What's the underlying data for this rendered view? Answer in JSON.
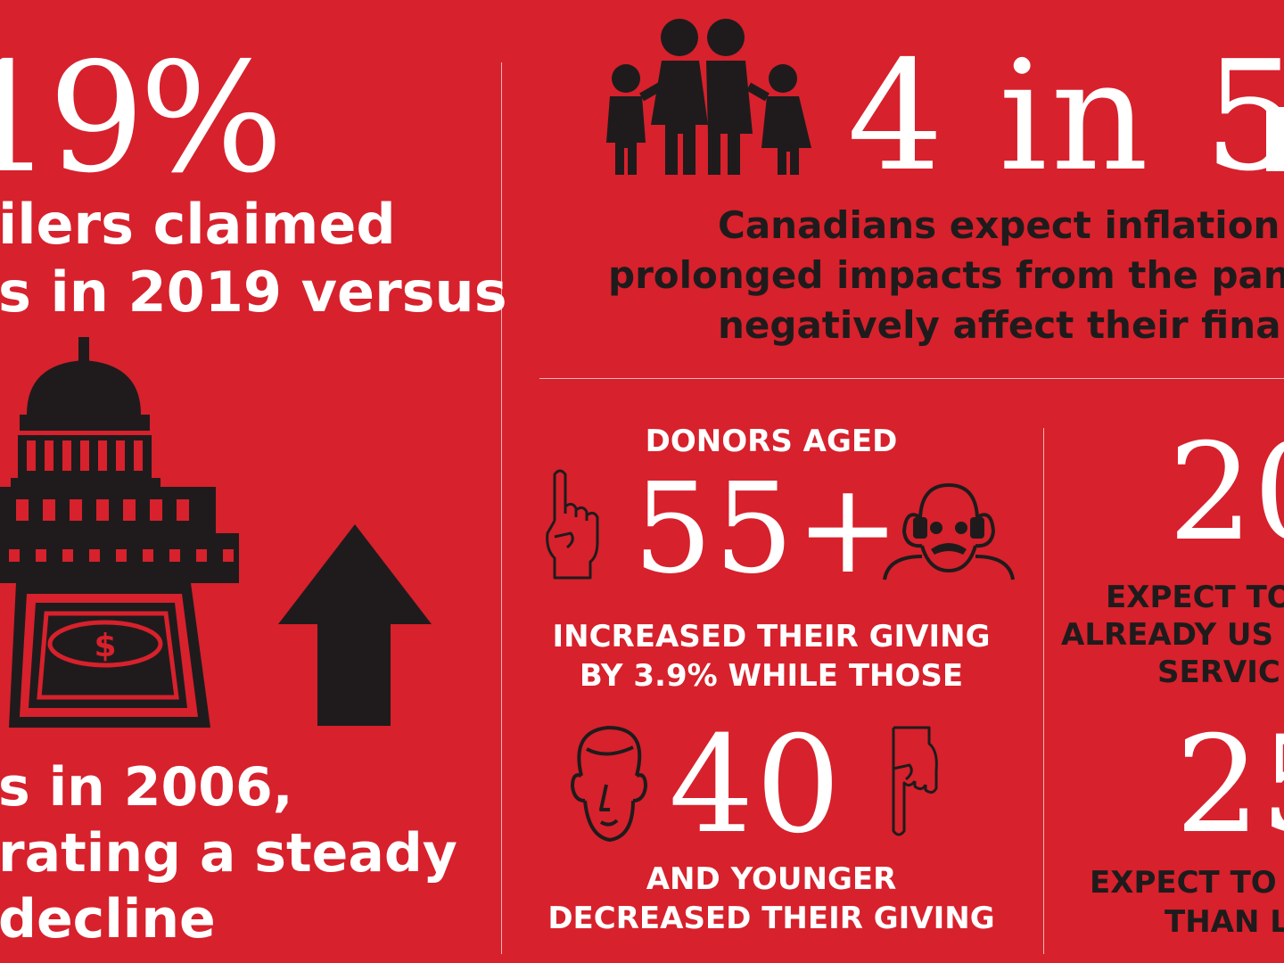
{
  "left": {
    "big_stat": "19%",
    "line1": "ilers claimed",
    "line2": "s in 2019 versus",
    "bottom_line1": "s in 2006,",
    "bottom_line2": "rating a steady",
    "bottom_line3": "decline"
  },
  "top_right": {
    "big_stat": "4 in 5",
    "text_line1": "Canadians expect inflation",
    "text_line2": "prolonged impacts from the pan",
    "text_line3": "negatively affect their finan"
  },
  "donors": {
    "heading": "DONORS AGED",
    "older_stat": "55+",
    "mid_line1": "INCREASED THEIR GIVING",
    "mid_line2": "BY 3.9% WHILE THOSE",
    "younger_stat": "40",
    "bottom_line1": "AND YOUNGER",
    "bottom_line2": "DECREASED THEIR GIVING"
  },
  "far_right": {
    "stat1": "20",
    "text1_line1": "EXPECT TO",
    "text1_line2": "ALREADY US",
    "text1_line3": "SERVIC",
    "stat2": "25",
    "text2_line1": "EXPECT TO",
    "text2_line2": "THAN L"
  },
  "icons": {
    "family": "family-icon",
    "building": "government-building-icon",
    "arrow": "arrow-up-icon",
    "finger_up": "finger-pointing-up-icon",
    "elder": "elderly-man-icon",
    "young": "young-man-icon",
    "finger_down": "finger-pointing-down-icon"
  },
  "colors": {
    "background": "#d7212c",
    "dark": "#1f1b1c",
    "light": "#ffffff"
  }
}
